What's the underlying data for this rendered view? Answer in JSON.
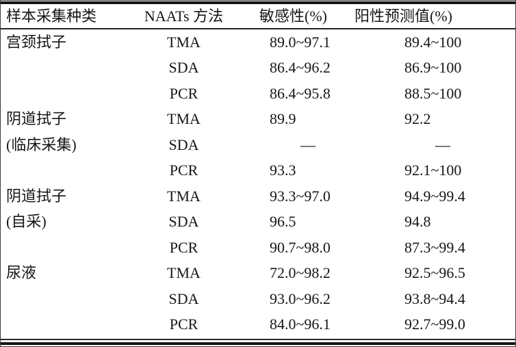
{
  "colors": {
    "background": "#ffffff",
    "text": "#161616",
    "rule": "#141414"
  },
  "table": {
    "headers": {
      "sample_type": "样本采集种类",
      "method": "NAATs 方法",
      "sensitivity": "敏感性(%)",
      "ppv": "阳性预测值(%)"
    },
    "missing_value_symbol": "—",
    "rows": [
      {
        "sample": "宫颈拭子",
        "method": "TMA",
        "sensitivity": "89.0~97.1",
        "ppv": "89.4~100"
      },
      {
        "sample": "",
        "method": "SDA",
        "sensitivity": "86.4~96.2",
        "ppv": "86.9~100"
      },
      {
        "sample": "",
        "method": "PCR",
        "sensitivity": "86.4~95.8",
        "ppv": "88.5~100"
      },
      {
        "sample": "阴道拭子",
        "method": "TMA",
        "sensitivity": "89.9",
        "ppv": "92.2"
      },
      {
        "sample": "(临床采集)",
        "method": "SDA",
        "sensitivity": "—",
        "ppv": "—"
      },
      {
        "sample": "",
        "method": "PCR",
        "sensitivity": "93.3",
        "ppv": "92.1~100"
      },
      {
        "sample": "阴道拭子",
        "method": "TMA",
        "sensitivity": "93.3~97.0",
        "ppv": "94.9~99.4"
      },
      {
        "sample": "(自采)",
        "method": "SDA",
        "sensitivity": "96.5",
        "ppv": "94.8"
      },
      {
        "sample": "",
        "method": "PCR",
        "sensitivity": "90.7~98.0",
        "ppv": "87.3~99.4"
      },
      {
        "sample": "尿液",
        "method": "TMA",
        "sensitivity": "72.0~98.2",
        "ppv": "92.5~96.5"
      },
      {
        "sample": "",
        "method": "SDA",
        "sensitivity": "93.0~96.2",
        "ppv": "93.8~94.4"
      },
      {
        "sample": "",
        "method": "PCR",
        "sensitivity": "84.0~96.1",
        "ppv": "92.7~99.0"
      }
    ]
  }
}
